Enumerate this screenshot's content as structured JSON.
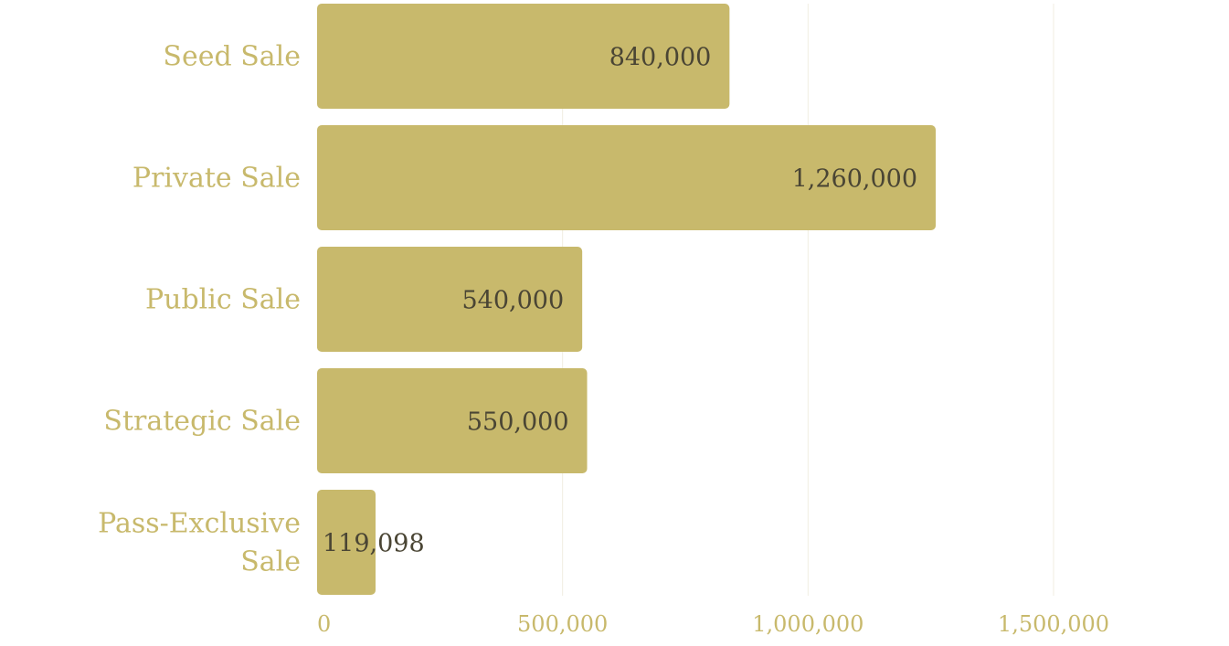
{
  "chart_data": {
    "type": "bar",
    "orientation": "horizontal",
    "categories": [
      "Seed Sale",
      "Private Sale",
      "Public Sale",
      "Strategic Sale",
      "Pass-Exclusive Sale"
    ],
    "category_lines": [
      [
        "Seed Sale"
      ],
      [
        "Private Sale"
      ],
      [
        "Public Sale"
      ],
      [
        "Strategic Sale"
      ],
      [
        "Pass-Exclusive",
        "Sale"
      ]
    ],
    "values": [
      840000,
      1260000,
      540000,
      550000,
      119098
    ],
    "value_labels": [
      "840,000",
      "1,260,000",
      "540,000",
      "550,000",
      "119,098"
    ],
    "x_ticks": [
      0,
      500000,
      1000000,
      1500000
    ],
    "x_tick_labels": [
      "0",
      "500,000",
      "1,000,000",
      "1,500,000"
    ],
    "xlim": [
      0,
      1500000
    ],
    "grid": true,
    "colors": {
      "bar": "#c8b96c",
      "label": "#c8b96c",
      "value_label": "#4a4534",
      "grid": "#f1eee2"
    },
    "title": "",
    "xlabel": "",
    "ylabel": ""
  }
}
